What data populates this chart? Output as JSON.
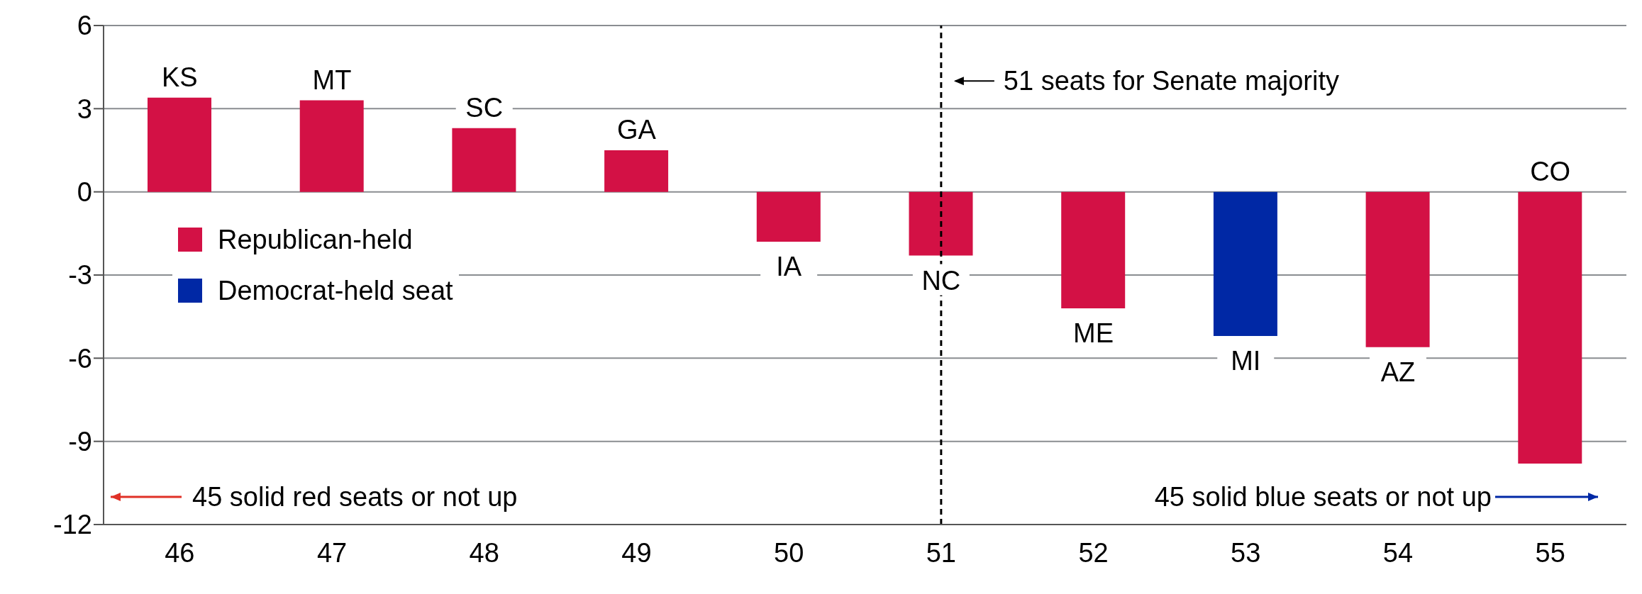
{
  "chart_data": {
    "type": "bar",
    "stacked": true,
    "categories": [
      "46",
      "47",
      "48",
      "49",
      "50",
      "51",
      "52",
      "53",
      "54",
      "55"
    ],
    "series": [
      {
        "name": "Republican-held",
        "color": "#d31145",
        "values": [
          3.4,
          3.3,
          2.3,
          1.5,
          -1.8,
          -2.3,
          -4.2,
          null,
          -5.6,
          -9.8
        ]
      },
      {
        "name": "Democrat-held seat",
        "color": "#0028a5",
        "values": [
          null,
          null,
          null,
          null,
          null,
          null,
          null,
          -5.2,
          null,
          null
        ]
      }
    ],
    "ylim": [
      -12,
      6
    ],
    "yticks": [
      -12,
      -9,
      -6,
      -3,
      0,
      3,
      6
    ],
    "grid": "y",
    "legend": "left",
    "ref_lines": [
      {
        "axis": "x",
        "value": "51",
        "label": "51 seats for Senate majority",
        "color": "#000000",
        "line_style": "dashed"
      }
    ],
    "annotations": [
      {
        "text": "KS",
        "x": "46",
        "y": 3.4
      },
      {
        "text": "MT",
        "x": "47",
        "y": 3.3
      },
      {
        "text": "SC",
        "x": "48",
        "y": 2.3
      },
      {
        "text": "GA",
        "x": "49",
        "y": 1.5
      },
      {
        "text": "IA",
        "x": "50",
        "y": -1.8
      },
      {
        "text": "NC",
        "x": "51",
        "y": -2.3
      },
      {
        "text": "ME",
        "x": "52",
        "y": -4.2
      },
      {
        "text": "MI",
        "x": "53",
        "y": -5.2
      },
      {
        "text": "AZ",
        "x": "54",
        "y": -5.6
      },
      {
        "text": "CO",
        "x": "55",
        "y": 0
      },
      "45 solid red seats or not up",
      "45 solid blue seats or not up"
    ]
  }
}
